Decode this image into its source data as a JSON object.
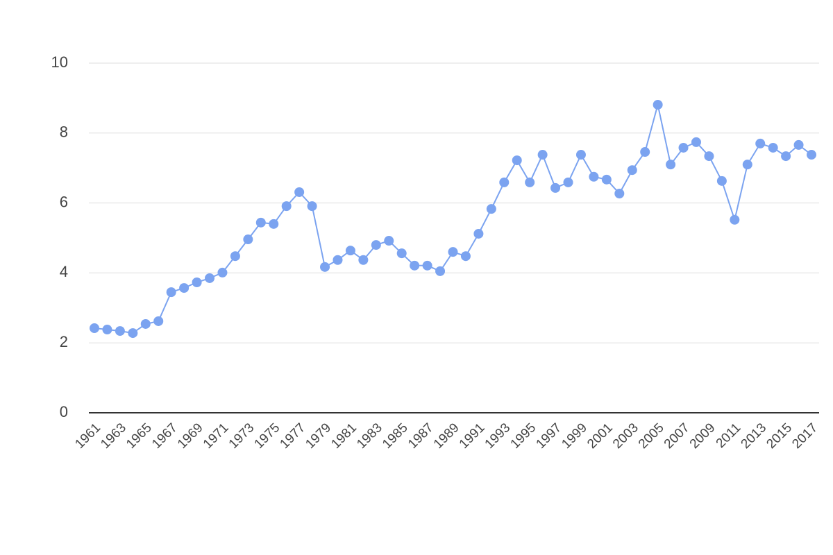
{
  "chart_data": {
    "type": "line",
    "x": [
      1961,
      1962,
      1963,
      1964,
      1965,
      1966,
      1967,
      1968,
      1969,
      1970,
      1971,
      1972,
      1973,
      1974,
      1975,
      1976,
      1977,
      1978,
      1979,
      1980,
      1981,
      1982,
      1983,
      1984,
      1985,
      1986,
      1987,
      1988,
      1989,
      1990,
      1991,
      1992,
      1993,
      1994,
      1995,
      1996,
      1997,
      1998,
      1999,
      2000,
      2001,
      2002,
      2003,
      2004,
      2005,
      2006,
      2007,
      2008,
      2009,
      2010,
      2011,
      2012,
      2013,
      2014,
      2015,
      2016,
      2017
    ],
    "values": [
      2.42,
      2.38,
      2.34,
      2.28,
      2.54,
      2.62,
      3.45,
      3.57,
      3.73,
      3.85,
      4.01,
      4.48,
      4.96,
      5.44,
      5.4,
      5.91,
      6.31,
      5.91,
      4.17,
      4.37,
      4.64,
      4.37,
      4.8,
      4.92,
      4.56,
      4.21,
      4.21,
      4.05,
      4.6,
      4.48,
      5.12,
      5.83,
      6.59,
      7.22,
      6.59,
      7.38,
      6.43,
      6.59,
      7.38,
      6.75,
      6.67,
      6.27,
      6.94,
      7.46,
      8.81,
      7.1,
      7.58,
      7.74,
      7.34,
      6.63,
      5.52,
      7.1,
      7.7,
      7.58,
      7.34,
      7.66,
      7.38
    ],
    "color": "#7ba3f0",
    "xlim": [
      1961,
      2017
    ],
    "xticks": [
      1961,
      1963,
      1965,
      1967,
      1969,
      1971,
      1973,
      1975,
      1977,
      1979,
      1981,
      1983,
      1985,
      1987,
      1989,
      1991,
      1993,
      1995,
      1997,
      1999,
      2001,
      2003,
      2005,
      2007,
      2009,
      2011,
      2013,
      2015,
      2017
    ],
    "ylim": [
      0,
      10
    ],
    "yticks": [
      0,
      2,
      4,
      6,
      8,
      10
    ],
    "grid": true
  }
}
